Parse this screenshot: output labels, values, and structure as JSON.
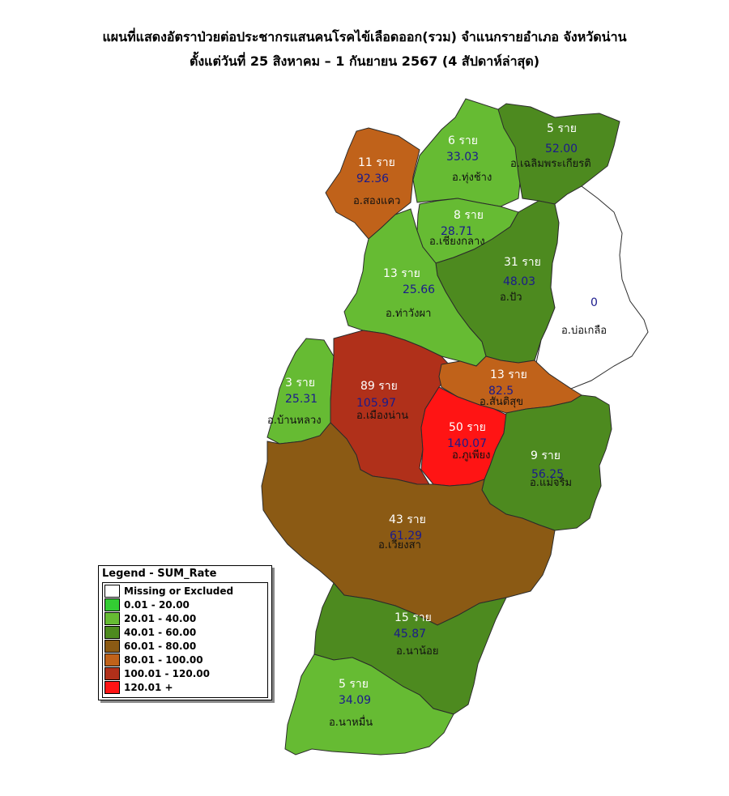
{
  "title": {
    "line1": "แผนที่แสดงอัตราป่วยต่อประชากรแสนคนโรคไข้เลือดออก(รวม) จำแนกรายอำเภอ จังหวัดน่าน",
    "line2": "ตั้งแต่วันที่ 25 สิงหาคม – 1 กันยายน 2567 (4 สัปดาห์ล่าสุด)"
  },
  "colors": {
    "missing": "#ffffff",
    "r0_20": "#33cc33",
    "r20_40": "#66bb33",
    "r40_60": "#4d8a1f",
    "r60_80": "#8b5a14",
    "r80_100": "#c0621a",
    "r100_120": "#b0301a",
    "r120_plus": "#ff1414"
  },
  "districts": {
    "songkhwae": {
      "cases": "11 ราย",
      "rate": "92.36",
      "name": "อ.สองแคว"
    },
    "thungchang": {
      "cases": "6 ราย",
      "rate": "33.03",
      "name": "อ.ทุ่งช้าง"
    },
    "chaloem": {
      "cases": "5 ราย",
      "rate": "52.00",
      "name": "อ.เฉลิมพระเกียรติ"
    },
    "chiangklang": {
      "cases": "8 ราย",
      "rate": "28.71",
      "name": "อ.เชียงกลาง"
    },
    "thawangpha": {
      "cases": "13 ราย",
      "rate": "25.66",
      "name": "อ.ท่าวังผา"
    },
    "pua": {
      "cases": "31 ราย",
      "rate": "48.03",
      "name": "อ.ปัว"
    },
    "bokluea": {
      "cases": "0",
      "rate": "",
      "name": "อ.บ่อเกลือ"
    },
    "banluang": {
      "cases": "3 ราย",
      "rate": "25.31",
      "name": "อ.บ้านหลวง"
    },
    "mueangnan": {
      "cases": "89 ราย",
      "rate": "105.97",
      "name": "อ.เมืองน่าน"
    },
    "santisuk": {
      "cases": "13 ราย",
      "rate": "82.5",
      "name": "อ.สันติสุข"
    },
    "phuphiang": {
      "cases": "50 ราย",
      "rate": "140.07",
      "name": "อ.ภูเพียง"
    },
    "maecharim": {
      "cases": "9 ราย",
      "rate": "56.25",
      "name": "อ.แม่จริม"
    },
    "wiangsa": {
      "cases": "43 ราย",
      "rate": "61.29",
      "name": "อ.เวียงสา"
    },
    "nanoi": {
      "cases": "15 ราย",
      "rate": "45.87",
      "name": "อ.นาน้อย"
    },
    "namuen": {
      "cases": "5 ราย",
      "rate": "34.09",
      "name": "อ.นาหมื่น"
    }
  },
  "legend": {
    "title": "Legend - SUM_Rate",
    "items": [
      {
        "label": "Missing or Excluded",
        "color": "#ffffff"
      },
      {
        "label": "0.01 - 20.00",
        "color": "#33cc33"
      },
      {
        "label": "20.01 - 40.00",
        "color": "#66bb33"
      },
      {
        "label": "40.01 - 60.00",
        "color": "#4d8a1f"
      },
      {
        "label": "60.01 - 80.00",
        "color": "#8b5a14"
      },
      {
        "label": "80.01 - 100.00",
        "color": "#c0621a"
      },
      {
        "label": "100.01 - 120.00",
        "color": "#b0301a"
      },
      {
        "label": "120.01 +",
        "color": "#ff1414"
      }
    ]
  }
}
